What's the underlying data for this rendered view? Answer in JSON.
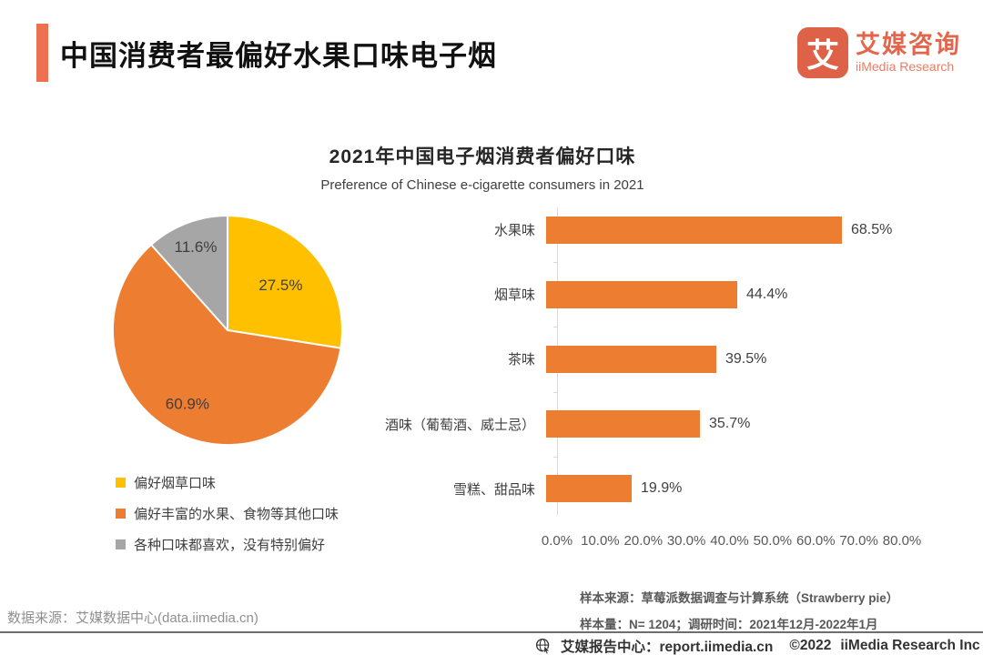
{
  "header": {
    "title": "中国消费者最偏好水果口味电子烟"
  },
  "logo": {
    "glyph": "艾",
    "name_cn": "艾媒咨询",
    "name_en": "iiMedia Research"
  },
  "chart": {
    "title": "2021年中国电子烟消费者偏好口味",
    "subtitle": "Preference of Chinese e-cigarette consumers in 2021"
  },
  "chart_data": [
    {
      "type": "pie",
      "title": "2021年中国电子烟消费者偏好口味",
      "start_angle_deg": -90,
      "direction": "clockwise",
      "legend_position": "bottom-left",
      "slices": [
        {
          "label": "偏好烟草口味",
          "value": 27.5,
          "display": "27.5%",
          "color": "#FFC000",
          "label_radius": 0.61
        },
        {
          "label": "偏好丰富的水果、食物等其他口味",
          "value": 60.9,
          "display": "60.9%",
          "color": "#ED7D31",
          "label_radius": 0.73
        },
        {
          "label": "各种口味都喜欢，没有特别偏好",
          "value": 11.6,
          "display": "11.6%",
          "color": "#A6A6A6",
          "label_radius": 0.78
        }
      ]
    },
    {
      "type": "bar",
      "orientation": "horizontal",
      "categories": [
        "水果味",
        "烟草味",
        "茶味",
        "酒味（葡萄酒、威士忌）",
        "雪糕、甜品味"
      ],
      "values": [
        68.5,
        44.4,
        39.5,
        35.7,
        19.9
      ],
      "value_labels": [
        "68.5%",
        "44.4%",
        "39.5%",
        "35.7%",
        "19.9%"
      ],
      "bar_color": "#ED7D31",
      "xlim": [
        0,
        80
      ],
      "ticks": [
        "0.0%",
        "10.0%",
        "20.0%",
        "30.0%",
        "40.0%",
        "50.0%",
        "60.0%",
        "70.0%",
        "80.0%"
      ],
      "grid": false
    }
  ],
  "footnotes": {
    "sample_source": "样本来源：草莓派数据调查与计算系统（Strawberry pie）",
    "sample_size": "样本量：N= 1204；调研时间：2021年12月-2022年1月"
  },
  "source": "数据来源：艾媒数据中心(data.iimedia.cn)",
  "footer": {
    "report_center": "艾媒报告中心：report.iimedia.cn",
    "copyright": "©2022",
    "company": "iiMedia Research Inc"
  },
  "colors": {
    "accent": "#ED7051",
    "brand": "#DD6247",
    "pie_yellow": "#FFC000",
    "pie_orange": "#ED7D31",
    "pie_gray": "#A6A6A6",
    "bar": "#ED7D31"
  }
}
